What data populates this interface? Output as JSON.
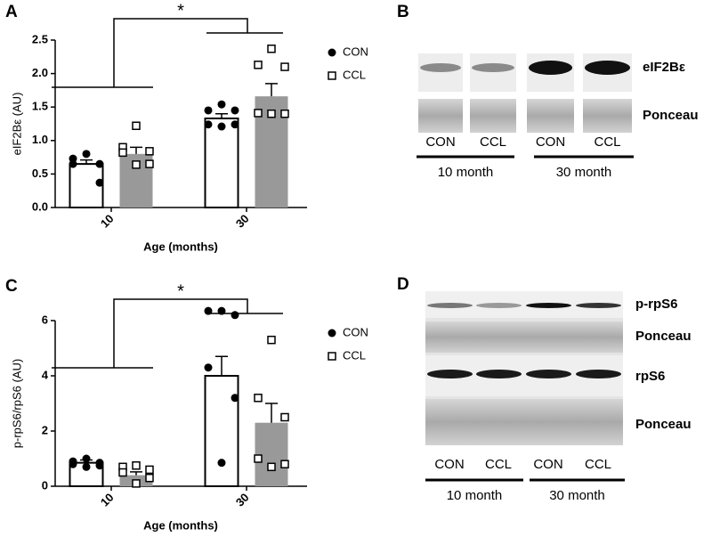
{
  "panel_labels": [
    "A",
    "B",
    "C",
    "D"
  ],
  "chart_data": [
    {
      "type": "bar",
      "ylabel": "eIF2Bε (AU)",
      "xlabel": "Age (months)",
      "categories": [
        "10",
        "30"
      ],
      "series": [
        {
          "name": "CON",
          "color": "#ffffff",
          "values": [
            0.65,
            1.33
          ],
          "errors": [
            0.06,
            0.07
          ],
          "points": [
            [
              0.8,
              0.73,
              0.65,
              0.65,
              0.37
            ],
            [
              1.54,
              1.45,
              1.45,
              1.24,
              1.24,
              1.21
            ]
          ]
        },
        {
          "name": "CCL",
          "color": "#999999",
          "values": [
            0.8,
            1.66
          ],
          "errors": [
            0.1,
            0.19
          ],
          "points": [
            [
              1.22,
              0.9,
              0.84,
              0.82,
              0.65,
              0.64
            ],
            [
              2.37,
              2.13,
              2.1,
              1.41,
              1.4,
              1.4
            ]
          ]
        }
      ],
      "ylim": [
        0,
        2.5
      ],
      "yticks": [
        {
          "value": 0,
          "label": "0.0"
        },
        0.5,
        {
          "value": 1,
          "label": "1.0"
        },
        1.5,
        {
          "value": 2,
          "label": "2.0"
        },
        2.5
      ],
      "annotation": "*"
    },
    {
      "type": "bar",
      "ylabel": "p-rpS6/rpS6 (AU)",
      "xlabel": "Age (months)",
      "categories": [
        "10",
        "30"
      ],
      "series": [
        {
          "name": "CON",
          "color": "#ffffff",
          "values": [
            0.85,
            4.0
          ],
          "errors": [
            0.1,
            0.7
          ],
          "points": [
            [
              1.0,
              0.9,
              0.85,
              0.8,
              0.75,
              0.7
            ],
            [
              6.35,
              6.35,
              6.2,
              4.3,
              3.2,
              0.85
            ]
          ]
        },
        {
          "name": "CCL",
          "color": "#999999",
          "values": [
            0.4,
            2.3
          ],
          "errors": [
            0.12,
            0.7
          ],
          "points": [
            [
              0.75,
              0.7,
              0.6,
              0.5,
              0.3,
              0.1
            ],
            [
              5.3,
              3.2,
              2.5,
              1.0,
              0.8,
              0.7
            ]
          ]
        }
      ],
      "ylim": [
        0,
        6
      ],
      "yticks": [
        0,
        2,
        4,
        6
      ],
      "annotation": "*"
    }
  ],
  "blots": [
    {
      "rows": [
        "eIF2Bε",
        "Ponceau"
      ],
      "lanes": [
        "CON",
        "CCL",
        "CON",
        "CCL"
      ],
      "groups": [
        "10 month",
        "30 month"
      ]
    },
    {
      "rows": [
        "p-rpS6",
        "Ponceau",
        "rpS6",
        "Ponceau"
      ],
      "lanes": [
        "CON",
        "CCL",
        "CON",
        "CCL"
      ],
      "groups": [
        "10 month",
        "30 month"
      ]
    }
  ]
}
